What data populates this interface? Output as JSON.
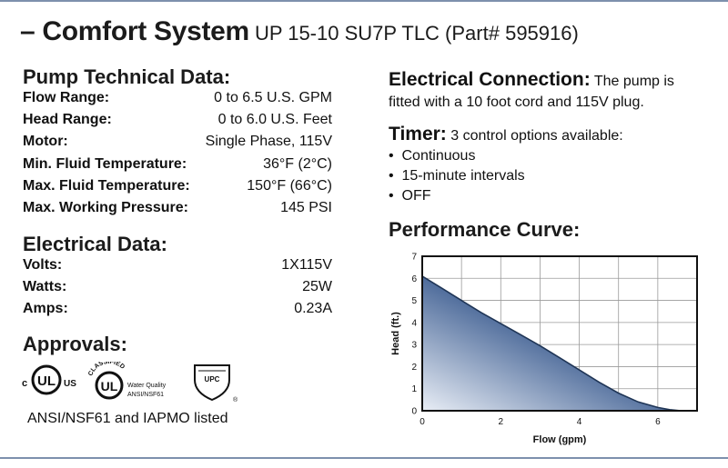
{
  "title": {
    "main": "– Comfort System",
    "sub": "UP 15-10 SU7P TLC (Part# 595916)"
  },
  "pump_technical": {
    "heading": "Pump Technical Data:",
    "rows": [
      {
        "label": "Flow Range:",
        "value": "0 to 6.5 U.S. GPM"
      },
      {
        "label": "Head Range:",
        "value": "0 to 6.0 U.S. Feet"
      },
      {
        "label": "Motor:",
        "value": "Single Phase, 115V"
      },
      {
        "label": "Min. Fluid Temperature:",
        "value": "36°F (2°C)"
      },
      {
        "label": "Max. Fluid Temperature:",
        "value": "150°F (66°C)"
      },
      {
        "label": "Max. Working Pressure:",
        "value": "145 PSI"
      }
    ]
  },
  "electrical_data": {
    "heading": "Electrical Data:",
    "rows": [
      {
        "label": "Volts:",
        "value": "1X115V"
      },
      {
        "label": "Watts:",
        "value": "25W"
      },
      {
        "label": "Amps:",
        "value": "0.23A"
      }
    ]
  },
  "approvals": {
    "heading": "Approvals:",
    "ul_c": "c",
    "ul_us": "US",
    "ul_mark": "UL",
    "classified_text": "CLASSIFIED",
    "water_quality_line1": "Water Quality",
    "water_quality_line2": "ANSI/NSF61",
    "upc_text": "UPC",
    "listed": "ANSI/NSF61 and IAPMO listed"
  },
  "electrical_connection": {
    "heading": "Electrical Connection:",
    "text": "The pump is fitted with a 10 foot cord and 115V plug."
  },
  "timer": {
    "heading": "Timer:",
    "text": "3 control options available:",
    "options": [
      "Continuous",
      "15-minute intervals",
      "OFF"
    ]
  },
  "performance": {
    "heading": "Performance Curve:"
  },
  "chart_data": {
    "type": "area",
    "xlabel": "Flow (gpm)",
    "ylabel": "Head (ft.)",
    "xlim": [
      0,
      7
    ],
    "ylim": [
      0,
      7
    ],
    "xticks": [
      0,
      2,
      4,
      6
    ],
    "yticks": [
      0,
      1,
      2,
      3,
      4,
      5,
      6,
      7
    ],
    "grid": true,
    "series": [
      {
        "x": [
          0,
          0.5,
          1,
          1.5,
          2,
          2.5,
          3,
          3.5,
          4,
          4.5,
          5,
          5.5,
          6,
          6.3,
          6.6
        ],
        "y": [
          6.1,
          5.55,
          5.0,
          4.45,
          3.95,
          3.45,
          2.95,
          2.4,
          1.85,
          1.3,
          0.8,
          0.4,
          0.15,
          0.05,
          0.0
        ]
      }
    ],
    "colors": {
      "fill_dark": "#3f5f92",
      "fill_light": "#e9eef6",
      "line": "#1f3556"
    }
  }
}
